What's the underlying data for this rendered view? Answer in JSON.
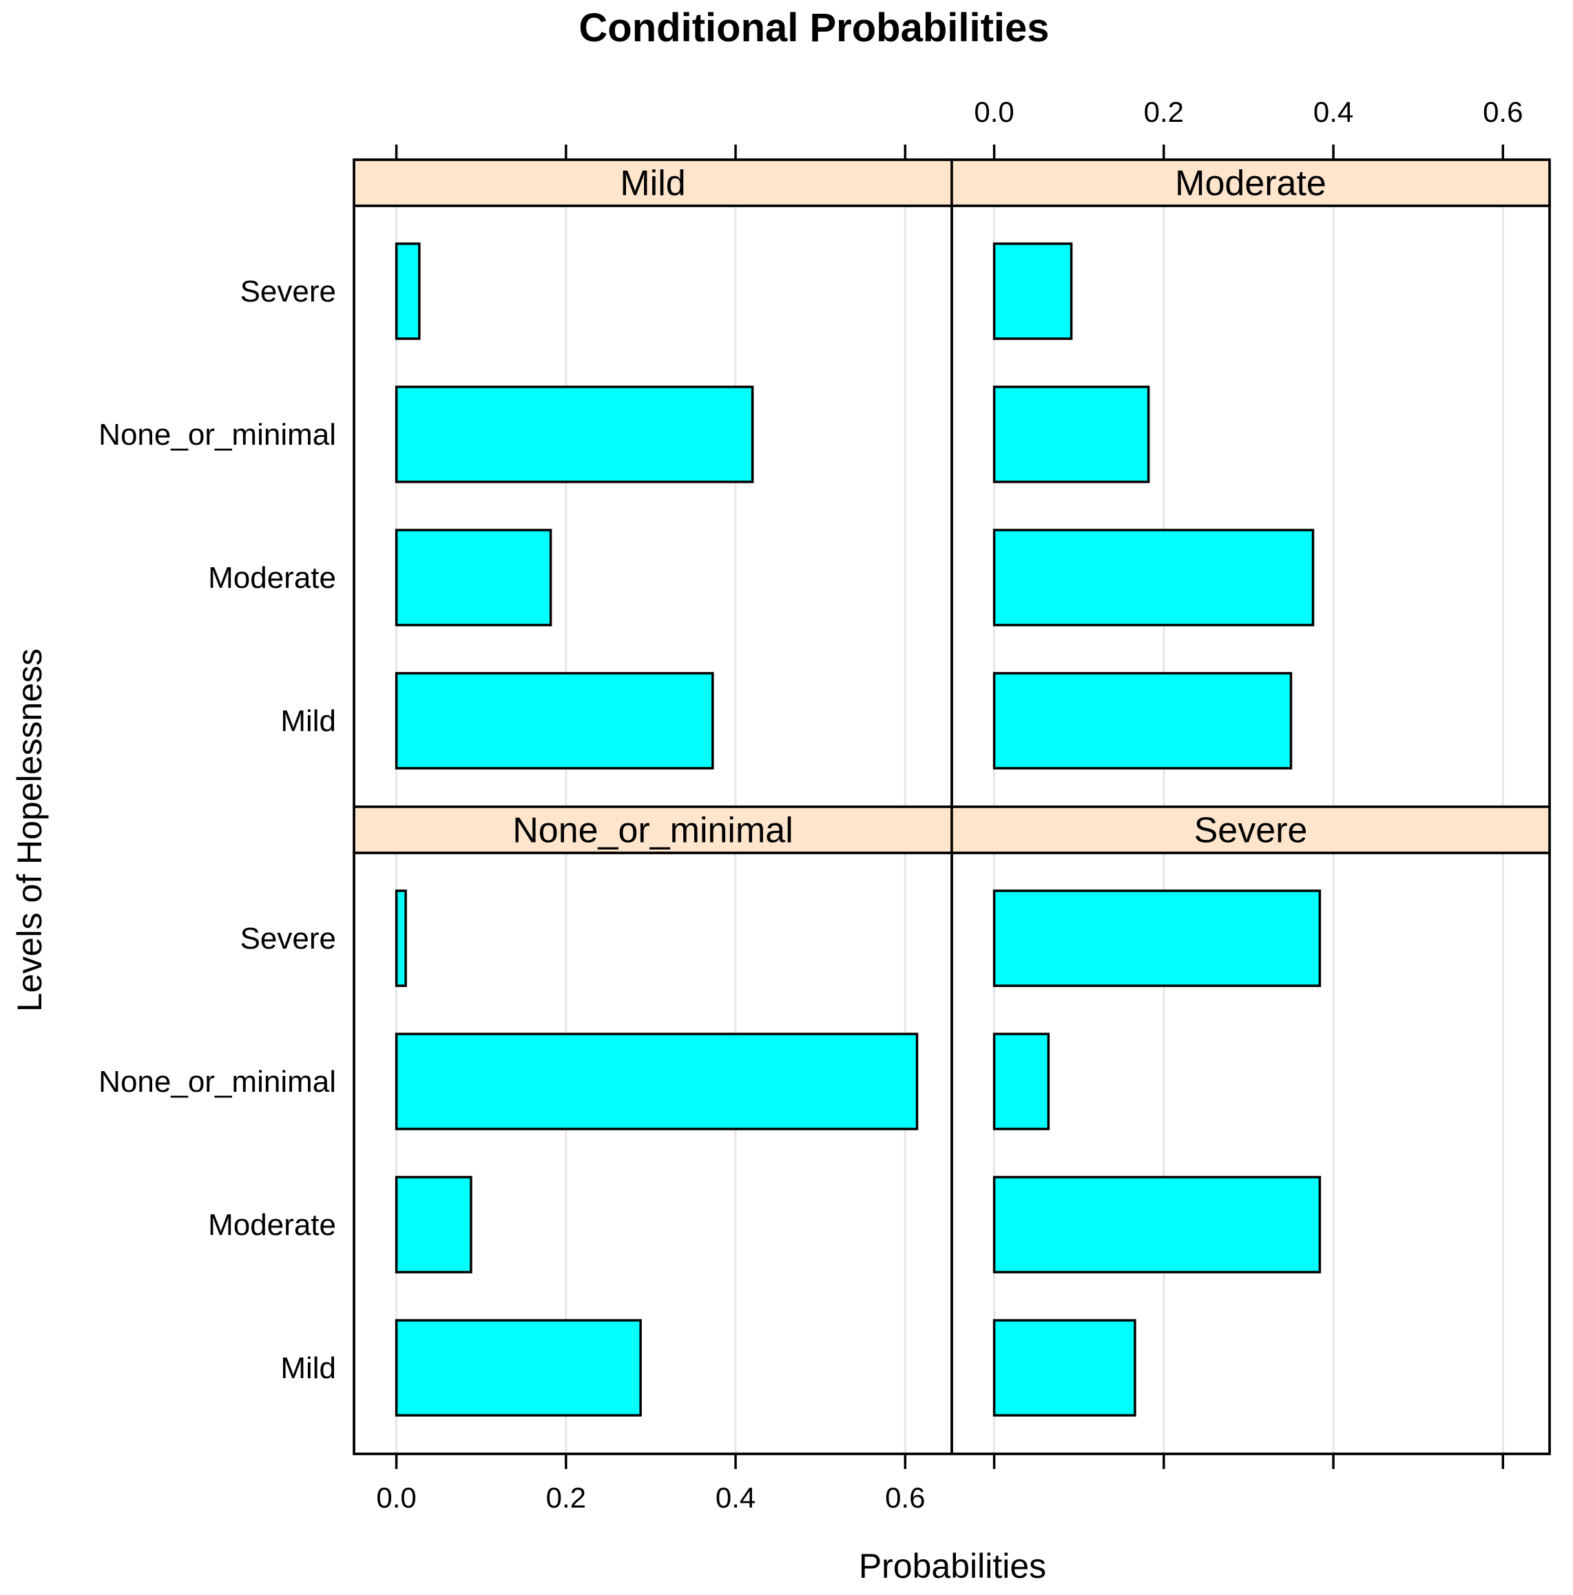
{
  "chart_data": {
    "type": "bar",
    "title": "Conditional Probabilities",
    "xlabel": "Probabilities",
    "ylabel": "Levels of Hopelessness",
    "xlim": [
      -0.05,
      0.655
    ],
    "x_ticks": [
      0.0,
      0.2,
      0.4,
      0.6
    ],
    "x_tick_labels": [
      "0.0",
      "0.2",
      "0.4",
      "0.6"
    ],
    "grid": true,
    "categories": [
      "Severe",
      "None_or_minimal",
      "Moderate",
      "Mild"
    ],
    "bar_color": "#00FFFF",
    "strip_color": "#FFE5CC",
    "grid_color": "#E6E6E6",
    "panels": [
      {
        "name": "Mild",
        "values": [
          0.027,
          0.42,
          0.182,
          0.373
        ]
      },
      {
        "name": "Moderate",
        "values": [
          0.091,
          0.182,
          0.376,
          0.35
        ]
      },
      {
        "name": "None_or_minimal",
        "values": [
          0.011,
          0.614,
          0.088,
          0.288
        ]
      },
      {
        "name": "Severe",
        "values": [
          0.384,
          0.064,
          0.384,
          0.166
        ]
      }
    ]
  }
}
